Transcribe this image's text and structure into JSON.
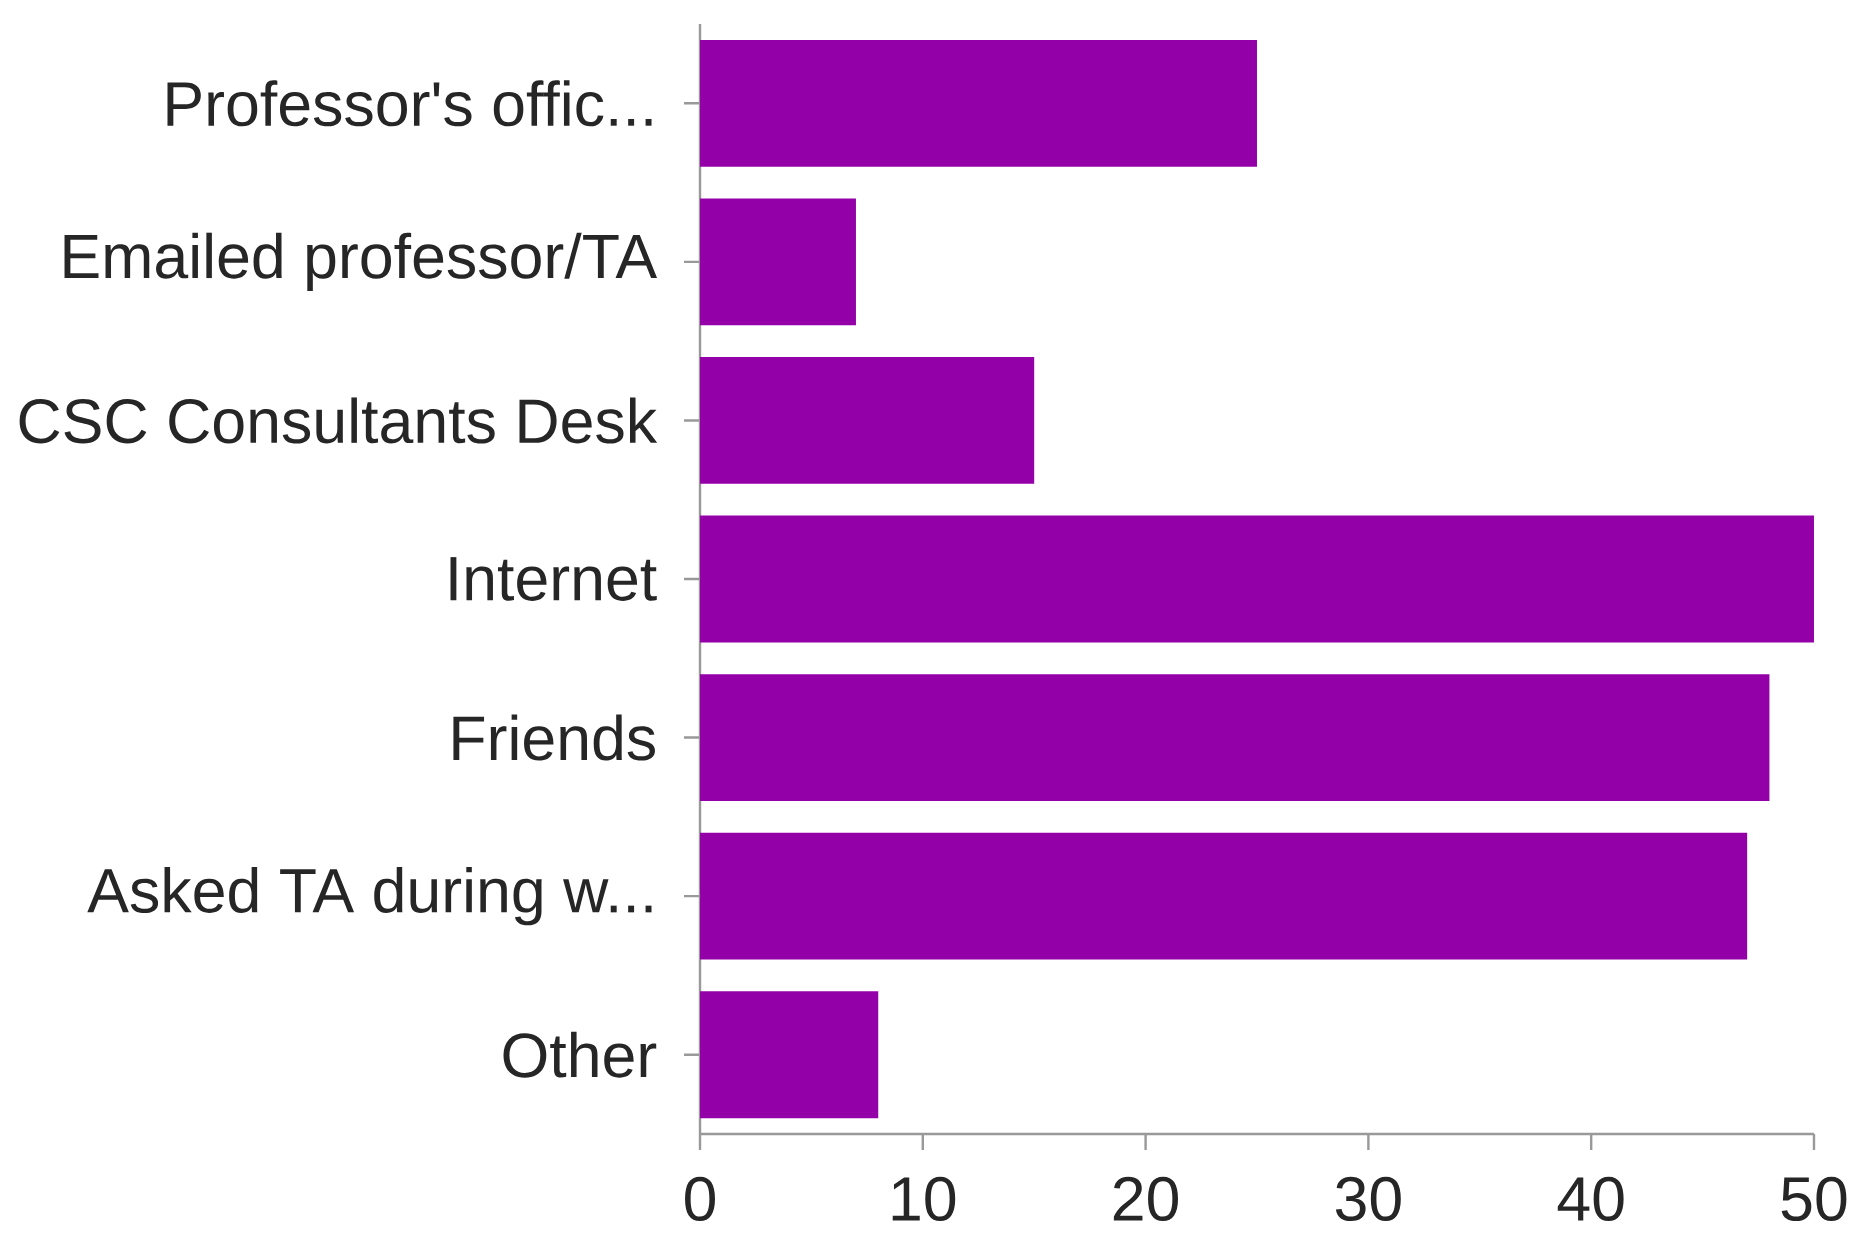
{
  "chart_data": {
    "type": "bar",
    "orientation": "horizontal",
    "categories": [
      "Professor's offic...",
      "Emailed professor/TA",
      "CSC Consultants Desk",
      "Internet",
      "Friends",
      "Asked TA during w...",
      "Other"
    ],
    "values": [
      25,
      7,
      15,
      50,
      48,
      47,
      8
    ],
    "color": "#9400a8",
    "xlim": [
      0,
      50
    ],
    "xticks": [
      0,
      10,
      20,
      30,
      40,
      50
    ],
    "grid": false
  }
}
